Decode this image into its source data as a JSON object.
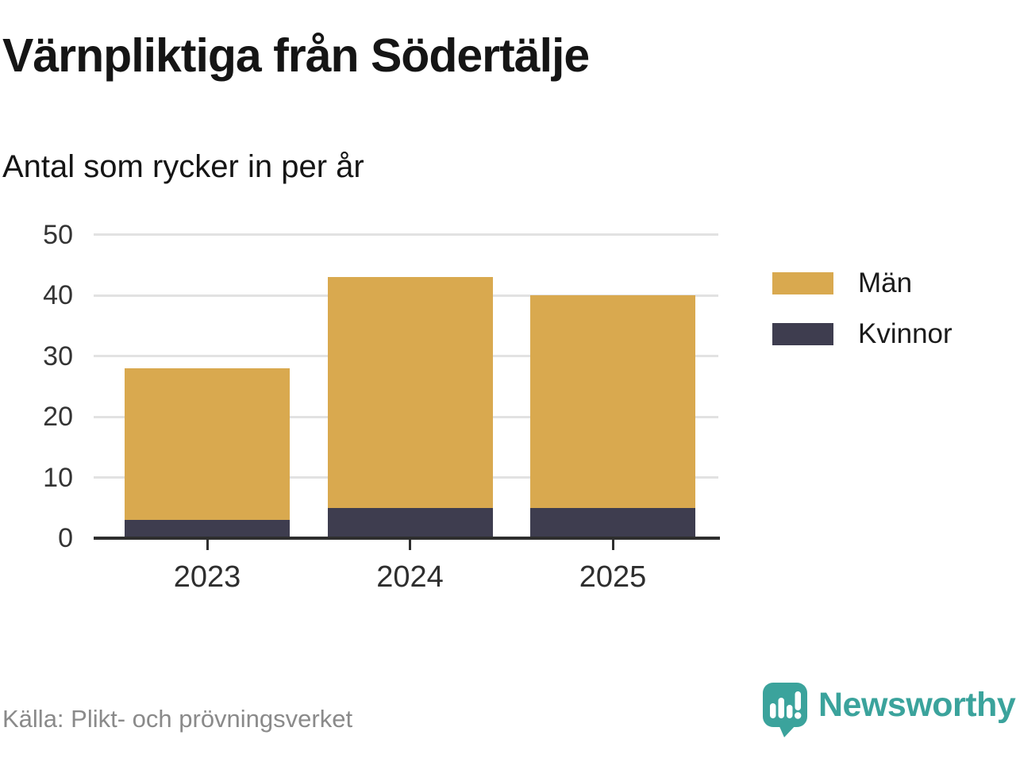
{
  "header": {
    "title": "Värnpliktiga från Södertälje",
    "subtitle": "Antal som rycker in per år"
  },
  "chart_data": {
    "type": "bar",
    "stacked": true,
    "title": "Värnpliktiga från Södertälje",
    "subtitle": "Antal som rycker in per år",
    "categories": [
      "2023",
      "2024",
      "2025"
    ],
    "series": [
      {
        "name": "Män",
        "color": "#D9A94F",
        "values": [
          25,
          38,
          35
        ]
      },
      {
        "name": "Kvinnor",
        "color": "#3E3D4F",
        "values": [
          3,
          5,
          5
        ]
      }
    ],
    "totals": [
      28,
      43,
      40
    ],
    "xlabel": "",
    "ylabel": "",
    "ylim": [
      0,
      50
    ],
    "yticks": [
      0,
      10,
      20,
      30,
      40,
      50
    ],
    "grid": true,
    "legend_position": "right"
  },
  "legend": {
    "items": [
      {
        "label": "Män",
        "color": "#D9A94F"
      },
      {
        "label": "Kvinnor",
        "color": "#3E3D4F"
      }
    ]
  },
  "footer": {
    "source": "Källa: Plikt- och prövningsverket",
    "brand": "Newsworthy",
    "brand_color": "#3BA39C"
  },
  "colors": {
    "bar_gold": "#D9A94F",
    "bar_dark": "#3E3D4F",
    "teal": "#3BA39C",
    "gridline": "#E2E2E2",
    "axis": "#2E2E2E",
    "text": "#151515",
    "muted_text": "#8A8A8A"
  }
}
